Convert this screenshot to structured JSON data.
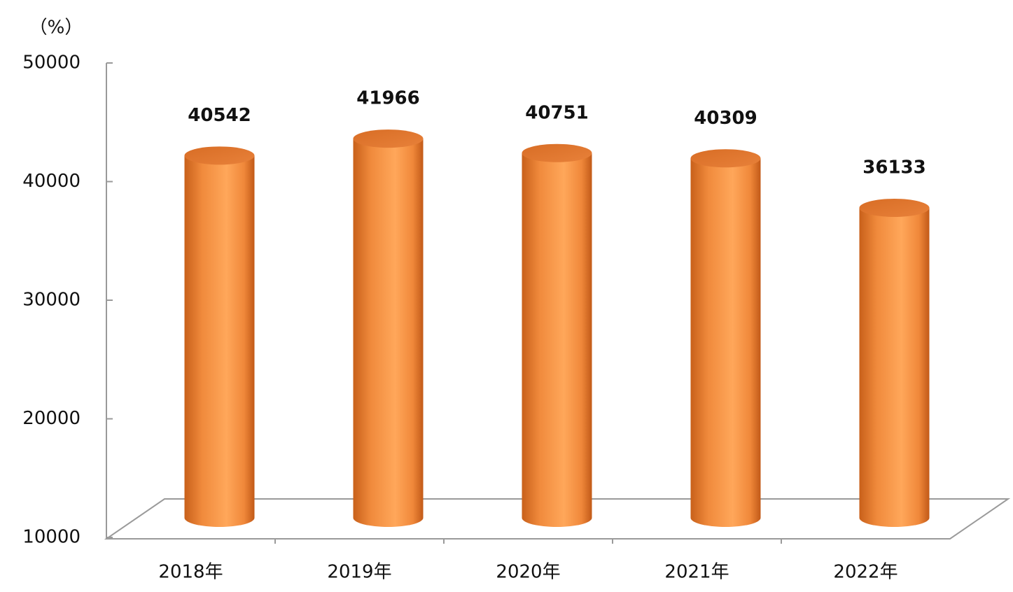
{
  "chart_data": {
    "type": "bar",
    "y_label": "（%）",
    "categories": [
      "2018年",
      "2019年",
      "2020年",
      "2021年",
      "2022年"
    ],
    "values": [
      40542,
      41966,
      40751,
      40309,
      36133
    ],
    "color": "#f79646",
    "ylim": [
      10000,
      50000
    ],
    "yticks": [
      10000,
      20000,
      30000,
      40000,
      50000
    ],
    "grid": false
  }
}
